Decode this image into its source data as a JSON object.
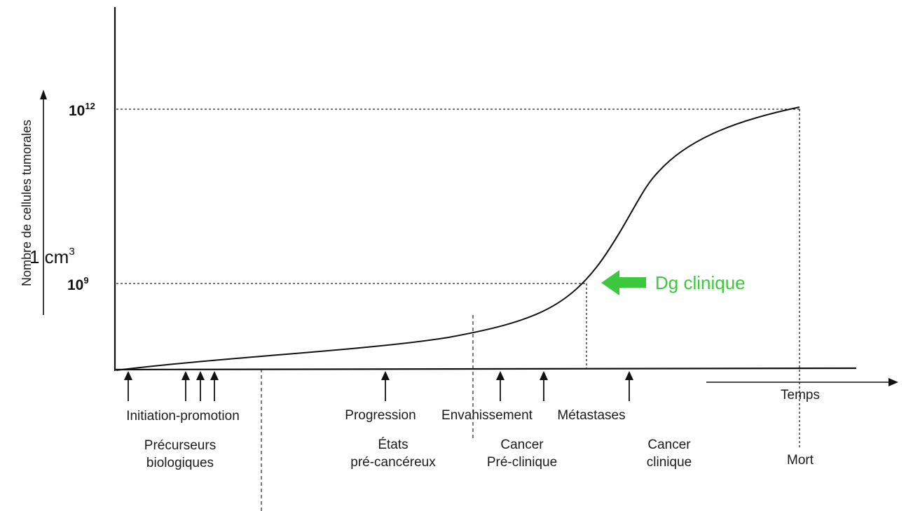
{
  "y_axis": {
    "label": "Nombre de cellules tumorales",
    "ticks": [
      {
        "base": "10",
        "exp": "12"
      },
      {
        "base": "10",
        "exp": "9"
      }
    ]
  },
  "x_axis": {
    "label": "Temps"
  },
  "annotation_volume": {
    "base": "1 cm",
    "exp": "3"
  },
  "annotation_diagnosis": {
    "text": "Dg clinique",
    "color": "#3cc83c"
  },
  "events": [
    {
      "label": "Initiation-promotion"
    },
    {
      "label": "Progression"
    },
    {
      "label": "Envahissement"
    },
    {
      "label": "Métastases"
    }
  ],
  "phases": [
    {
      "line1": "Précurseurs",
      "line2": "biologiques"
    },
    {
      "line1": "États",
      "line2": "pré-cancéreux"
    },
    {
      "line1": "Cancer",
      "line2": "Pré-clinique"
    },
    {
      "line1": "Cancer",
      "line2": "clinique"
    },
    {
      "line1": "Mort",
      "line2": ""
    }
  ],
  "colors": {
    "ink": "#111111",
    "diagnosis": "#3cc83c"
  }
}
